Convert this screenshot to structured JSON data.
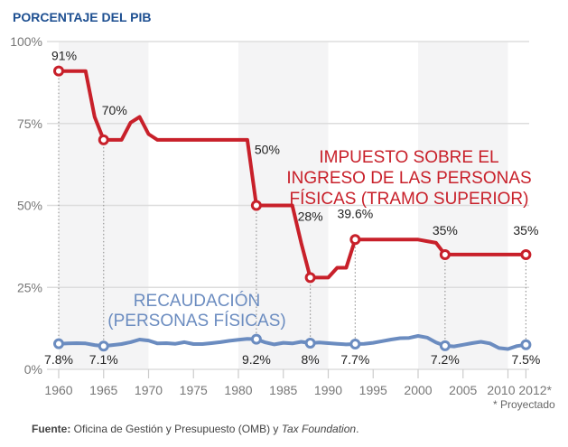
{
  "chart_data": {
    "type": "line",
    "title": "",
    "ylabel": "PORCENTAJE DEL PIB",
    "xlabel": "",
    "ylim": [
      0,
      100
    ],
    "xlim": [
      1960,
      2012
    ],
    "yticks": [
      0,
      25,
      50,
      75,
      100
    ],
    "ytick_labels": [
      "0%",
      "25%",
      "50%",
      "75%",
      "100%"
    ],
    "xticks": [
      1960,
      1965,
      1970,
      1975,
      1980,
      1985,
      1990,
      1995,
      2000,
      2005,
      2010,
      2012
    ],
    "xtick_labels": [
      "1960",
      "1965",
      "1970",
      "1975",
      "1980",
      "1985",
      "1990",
      "1995",
      "2000",
      "2005",
      "2010",
      "2012*"
    ],
    "grid": "horizontal",
    "shaded_bands": [
      [
        1960,
        1970
      ],
      [
        1980,
        1990
      ],
      [
        2000,
        2010
      ]
    ],
    "footnote": "* Proyectado",
    "series": [
      {
        "name": "IMPUESTO SOBRE EL INGRESO DE LAS PERSONAS FÍSICAS (TRAMO SUPERIOR)",
        "name_lines": [
          "IMPUESTO SOBRE EL",
          "INGRESO DE LAS PERSONAS",
          "FÍSICAS (TRAMO SUPERIOR)"
        ],
        "color": "#c8202a",
        "x": [
          1960,
          1961,
          1962,
          1963,
          1964,
          1965,
          1966,
          1967,
          1968,
          1969,
          1970,
          1971,
          1972,
          1973,
          1974,
          1975,
          1976,
          1977,
          1978,
          1979,
          1980,
          1981,
          1982,
          1983,
          1984,
          1985,
          1986,
          1987,
          1988,
          1989,
          1990,
          1991,
          1992,
          1993,
          1994,
          1995,
          1996,
          1997,
          1998,
          1999,
          2000,
          2001,
          2002,
          2003,
          2004,
          2005,
          2006,
          2007,
          2008,
          2009,
          2010,
          2011,
          2012
        ],
        "values": [
          91,
          91,
          91,
          91,
          77,
          70,
          70,
          70,
          75.25,
          77,
          71.75,
          70,
          70,
          70,
          70,
          70,
          70,
          70,
          70,
          70,
          70,
          70,
          50,
          50,
          50,
          50,
          50,
          38.5,
          28,
          28,
          28,
          31,
          31,
          39.6,
          39.6,
          39.6,
          39.6,
          39.6,
          39.6,
          39.6,
          39.6,
          39.1,
          38.6,
          35,
          35,
          35,
          35,
          35,
          35,
          35,
          35,
          35,
          35
        ],
        "marked_points": [
          {
            "year": 1960,
            "value": 91,
            "label": "91%"
          },
          {
            "year": 1965,
            "value": 70,
            "label": "70%"
          },
          {
            "year": 1982,
            "value": 50,
            "label": "50%"
          },
          {
            "year": 1988,
            "value": 28,
            "label": "28%"
          },
          {
            "year": 1993,
            "value": 39.6,
            "label": "39.6%"
          },
          {
            "year": 2003,
            "value": 35,
            "label": "35%"
          },
          {
            "year": 2012,
            "value": 35,
            "label": "35%"
          }
        ]
      },
      {
        "name": "RECAUDACIÓN (PERSONAS FÍSICAS)",
        "name_lines": [
          "RECAUDACIÓN",
          "(PERSONAS FÍSICAS)"
        ],
        "color": "#6b8cc0",
        "x": [
          1960,
          1961,
          1962,
          1963,
          1964,
          1965,
          1966,
          1967,
          1968,
          1969,
          1970,
          1971,
          1972,
          1973,
          1974,
          1975,
          1976,
          1977,
          1978,
          1979,
          1980,
          1981,
          1982,
          1983,
          1984,
          1985,
          1986,
          1987,
          1988,
          1989,
          1990,
          1991,
          1992,
          1993,
          1994,
          1995,
          1996,
          1997,
          1998,
          1999,
          2000,
          2001,
          2002,
          2003,
          2004,
          2005,
          2006,
          2007,
          2008,
          2009,
          2010,
          2011,
          2012
        ],
        "values": [
          7.8,
          7.9,
          8.0,
          7.9,
          7.4,
          7.1,
          7.4,
          7.7,
          8.3,
          9.1,
          8.8,
          7.9,
          8.0,
          7.8,
          8.3,
          7.7,
          7.7,
          8.0,
          8.3,
          8.7,
          9.0,
          9.3,
          9.2,
          8.2,
          7.6,
          8.1,
          7.9,
          8.4,
          8.0,
          8.2,
          8.0,
          7.8,
          7.6,
          7.7,
          7.8,
          8.1,
          8.6,
          9.1,
          9.5,
          9.6,
          10.2,
          9.7,
          8.2,
          7.2,
          7.0,
          7.5,
          8.0,
          8.4,
          7.9,
          6.5,
          6.2,
          7.1,
          7.5
        ],
        "marked_points": [
          {
            "year": 1960,
            "value": 7.8,
            "label": "7.8%"
          },
          {
            "year": 1965,
            "value": 7.1,
            "label": "7.1%"
          },
          {
            "year": 1982,
            "value": 9.2,
            "label": "9.2%"
          },
          {
            "year": 1988,
            "value": 8.0,
            "label": "8%"
          },
          {
            "year": 1993,
            "value": 7.7,
            "label": "7.7%"
          },
          {
            "year": 2003,
            "value": 7.2,
            "label": "7.2%"
          },
          {
            "year": 2012,
            "value": 7.5,
            "label": "7.5%"
          }
        ]
      }
    ]
  },
  "source": {
    "label": "Fuente:",
    "text": " Oficina de Gestión y Presupuesto (OMB) y ",
    "italic": "Tax Foundation",
    "end": "."
  }
}
